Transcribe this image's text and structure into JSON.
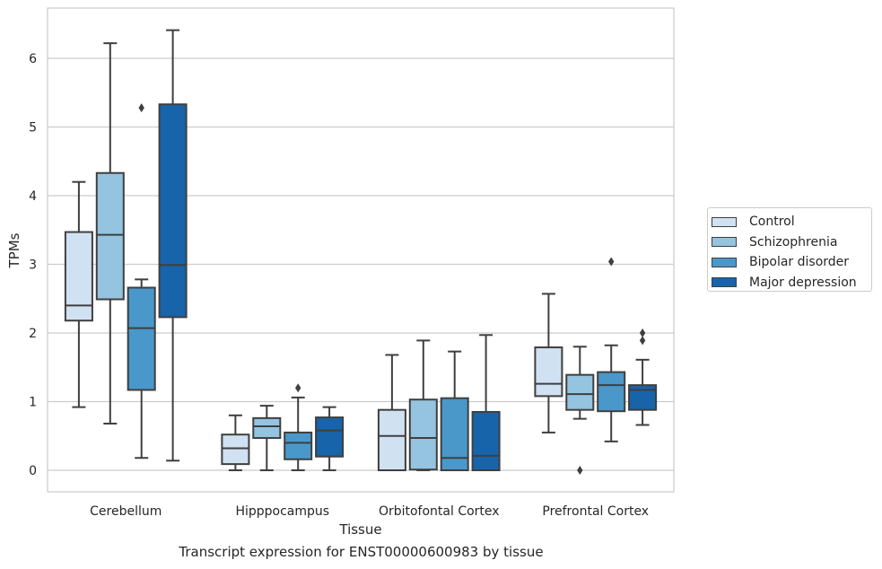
{
  "caption": "Transcript expression for ENST00000600983 by tissue",
  "chart_data": {
    "type": "box",
    "categories": [
      "Cerebellum",
      "Hipppocampus",
      "Orbitofontal Cortex",
      "Prefrontal Cortex"
    ],
    "xlabel": "Tissue",
    "ylabel": "TPMs",
    "ylim": [
      -0.3,
      6.75
    ],
    "yticks": [
      0,
      1,
      2,
      3,
      4,
      5,
      6
    ],
    "grid": true,
    "legend_position": "right",
    "series": [
      {
        "name": "Control",
        "color": "#d0e1f2",
        "boxes": [
          {
            "whislo": 0.92,
            "q1": 2.18,
            "med": 2.4,
            "q3": 3.47,
            "whishi": 4.2,
            "fliers": []
          },
          {
            "whislo": 0.0,
            "q1": 0.09,
            "med": 0.32,
            "q3": 0.52,
            "whishi": 0.8,
            "fliers": []
          },
          {
            "whislo": 0.0,
            "q1": 0.0,
            "med": 0.5,
            "q3": 0.88,
            "whishi": 1.68,
            "fliers": []
          },
          {
            "whislo": 0.55,
            "q1": 1.08,
            "med": 1.26,
            "q3": 1.79,
            "whishi": 2.57,
            "fliers": []
          }
        ]
      },
      {
        "name": "Schizophrenia",
        "color": "#94c4df",
        "boxes": [
          {
            "whislo": 0.68,
            "q1": 2.49,
            "med": 3.43,
            "q3": 4.33,
            "whishi": 6.22,
            "fliers": []
          },
          {
            "whislo": 0.0,
            "q1": 0.47,
            "med": 0.64,
            "q3": 0.76,
            "whishi": 0.94,
            "fliers": []
          },
          {
            "whislo": 0.0,
            "q1": 0.01,
            "med": 0.47,
            "q3": 1.03,
            "whishi": 1.89,
            "fliers": []
          },
          {
            "whislo": 0.75,
            "q1": 0.88,
            "med": 1.11,
            "q3": 1.39,
            "whishi": 1.8,
            "fliers": [
              0.0
            ]
          }
        ]
      },
      {
        "name": "Bipolar disorder",
        "color": "#4a98c9",
        "boxes": [
          {
            "whislo": 0.18,
            "q1": 1.17,
            "med": 2.07,
            "q3": 2.66,
            "whishi": 2.78,
            "fliers": [
              5.28
            ]
          },
          {
            "whislo": 0.0,
            "q1": 0.16,
            "med": 0.4,
            "q3": 0.55,
            "whishi": 1.06,
            "fliers": [
              1.2
            ]
          },
          {
            "whislo": 0.0,
            "q1": 0.0,
            "med": 0.18,
            "q3": 1.05,
            "whishi": 1.73,
            "fliers": []
          },
          {
            "whislo": 0.42,
            "q1": 0.86,
            "med": 1.24,
            "q3": 1.43,
            "whishi": 1.82,
            "fliers": [
              3.04
            ]
          }
        ]
      },
      {
        "name": "Major depression",
        "color": "#1764ab",
        "boxes": [
          {
            "whislo": 0.14,
            "q1": 2.23,
            "med": 2.99,
            "q3": 5.33,
            "whishi": 6.41,
            "fliers": []
          },
          {
            "whislo": 0.0,
            "q1": 0.2,
            "med": 0.58,
            "q3": 0.77,
            "whishi": 0.92,
            "fliers": []
          },
          {
            "whislo": 0.0,
            "q1": 0.0,
            "med": 0.21,
            "q3": 0.85,
            "whishi": 1.97,
            "fliers": []
          },
          {
            "whislo": 0.66,
            "q1": 0.88,
            "med": 1.17,
            "q3": 1.24,
            "whishi": 1.61,
            "fliers": [
              1.89,
              2.0
            ]
          }
        ]
      }
    ]
  }
}
